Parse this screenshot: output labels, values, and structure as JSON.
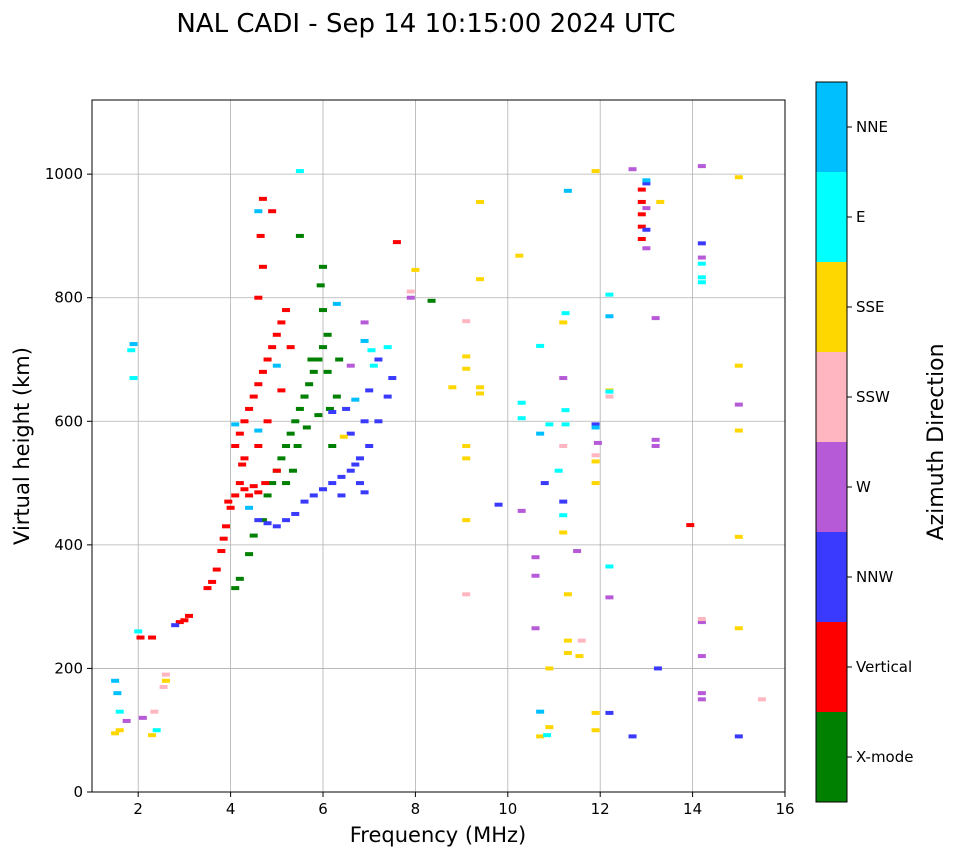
{
  "chart_data": {
    "type": "scatter",
    "title": "NAL CADI - Sep 14 10:15:00 2024 UTC",
    "xlabel": "Frequency (MHz)",
    "ylabel": "Virtual height (km)",
    "xlim": [
      1,
      16
    ],
    "ylim": [
      0,
      1120
    ],
    "xticks": [
      2,
      4,
      6,
      8,
      10,
      12,
      14,
      16
    ],
    "yticks": [
      0,
      200,
      400,
      600,
      800,
      1000
    ],
    "grid": true,
    "colorbar": {
      "title": "Azimuth Direction",
      "placement": "right",
      "categories": [
        {
          "name": "X-mode",
          "color": "#008000"
        },
        {
          "name": "Vertical",
          "color": "#ff0000"
        },
        {
          "name": "NNW",
          "color": "#3a3aff"
        },
        {
          "name": "W",
          "color": "#b65ad8"
        },
        {
          "name": "SSW",
          "color": "#ffb6c1"
        },
        {
          "name": "SSE",
          "color": "#ffd700"
        },
        {
          "name": "E",
          "color": "#00ffff"
        },
        {
          "name": "NNE",
          "color": "#00bfff"
        }
      ]
    },
    "series": [
      {
        "name": "X-mode",
        "points": [
          [
            4.1,
            330
          ],
          [
            4.2,
            345
          ],
          [
            4.4,
            385
          ],
          [
            4.5,
            415
          ],
          [
            4.7,
            440
          ],
          [
            4.8,
            480
          ],
          [
            4.9,
            500
          ],
          [
            5.0,
            520
          ],
          [
            5.1,
            540
          ],
          [
            5.2,
            560
          ],
          [
            5.3,
            580
          ],
          [
            5.4,
            600
          ],
          [
            5.5,
            620
          ],
          [
            5.6,
            640
          ],
          [
            5.7,
            660
          ],
          [
            5.8,
            680
          ],
          [
            5.9,
            700
          ],
          [
            6.0,
            720
          ],
          [
            6.1,
            740
          ],
          [
            6.0,
            780
          ],
          [
            5.95,
            820
          ],
          [
            6.0,
            850
          ],
          [
            5.5,
            900
          ],
          [
            5.6,
            640
          ],
          [
            5.75,
            700
          ],
          [
            5.35,
            520
          ],
          [
            5.2,
            500
          ],
          [
            5.45,
            560
          ],
          [
            5.65,
            590
          ],
          [
            5.9,
            610
          ],
          [
            6.15,
            620
          ],
          [
            6.3,
            640
          ],
          [
            6.2,
            560
          ],
          [
            6.35,
            700
          ],
          [
            6.1,
            680
          ],
          [
            8.35,
            795
          ]
        ]
      },
      {
        "name": "Vertical",
        "points": [
          [
            2.05,
            250
          ],
          [
            2.3,
            250
          ],
          [
            2.9,
            275
          ],
          [
            3.0,
            278
          ],
          [
            3.1,
            285
          ],
          [
            3.5,
            330
          ],
          [
            3.6,
            340
          ],
          [
            3.7,
            360
          ],
          [
            3.8,
            390
          ],
          [
            3.85,
            410
          ],
          [
            3.9,
            430
          ],
          [
            4.0,
            460
          ],
          [
            4.1,
            480
          ],
          [
            4.2,
            500
          ],
          [
            4.3,
            490
          ],
          [
            4.4,
            480
          ],
          [
            4.5,
            495
          ],
          [
            4.6,
            485
          ],
          [
            4.1,
            560
          ],
          [
            4.2,
            580
          ],
          [
            4.3,
            600
          ],
          [
            4.4,
            620
          ],
          [
            4.5,
            640
          ],
          [
            4.6,
            660
          ],
          [
            4.7,
            680
          ],
          [
            4.8,
            700
          ],
          [
            4.9,
            720
          ],
          [
            5.0,
            740
          ],
          [
            5.1,
            760
          ],
          [
            5.2,
            780
          ],
          [
            5.3,
            720
          ],
          [
            4.6,
            800
          ],
          [
            4.7,
            850
          ],
          [
            4.65,
            900
          ],
          [
            4.7,
            960
          ],
          [
            4.9,
            940
          ],
          [
            4.6,
            560
          ],
          [
            4.8,
            600
          ],
          [
            5.0,
            520
          ],
          [
            4.3,
            540
          ],
          [
            4.75,
            500
          ],
          [
            3.95,
            470
          ],
          [
            4.25,
            530
          ],
          [
            5.1,
            650
          ],
          [
            7.6,
            890
          ],
          [
            12.9,
            975
          ],
          [
            12.9,
            955
          ],
          [
            12.9,
            935
          ],
          [
            12.9,
            915
          ],
          [
            12.9,
            895
          ],
          [
            13.95,
            432
          ]
        ]
      },
      {
        "name": "NNW",
        "points": [
          [
            2.8,
            270
          ],
          [
            4.6,
            440
          ],
          [
            4.8,
            435
          ],
          [
            5.0,
            430
          ],
          [
            5.2,
            440
          ],
          [
            5.4,
            450
          ],
          [
            5.6,
            470
          ],
          [
            5.8,
            480
          ],
          [
            6.0,
            490
          ],
          [
            6.2,
            500
          ],
          [
            6.4,
            510
          ],
          [
            6.6,
            520
          ],
          [
            6.8,
            540
          ],
          [
            7.0,
            560
          ],
          [
            7.2,
            600
          ],
          [
            7.4,
            640
          ],
          [
            7.5,
            670
          ],
          [
            6.5,
            620
          ],
          [
            6.6,
            580
          ],
          [
            6.7,
            530
          ],
          [
            6.8,
            500
          ],
          [
            6.9,
            600
          ],
          [
            7.0,
            650
          ],
          [
            7.2,
            700
          ],
          [
            6.4,
            480
          ],
          [
            6.2,
            615
          ],
          [
            6.9,
            485
          ],
          [
            10.8,
            500
          ],
          [
            11.2,
            470
          ],
          [
            11.9,
            595
          ],
          [
            12.2,
            128
          ],
          [
            12.7,
            90
          ],
          [
            13.25,
            200
          ],
          [
            14.2,
            888
          ],
          [
            15.0,
            90
          ],
          [
            13.0,
            985
          ],
          [
            13.0,
            910
          ],
          [
            9.8,
            465
          ]
        ]
      },
      {
        "name": "W",
        "points": [
          [
            1.75,
            115
          ],
          [
            2.1,
            120
          ],
          [
            6.6,
            690
          ],
          [
            6.9,
            760
          ],
          [
            7.9,
            800
          ],
          [
            10.3,
            455
          ],
          [
            10.6,
            380
          ],
          [
            10.6,
            350
          ],
          [
            10.6,
            265
          ],
          [
            11.2,
            670
          ],
          [
            11.5,
            390
          ],
          [
            11.95,
            565
          ],
          [
            12.2,
            315
          ],
          [
            12.7,
            1008
          ],
          [
            13.2,
            570
          ],
          [
            13.2,
            560
          ],
          [
            13.2,
            767
          ],
          [
            14.2,
            1013
          ],
          [
            14.2,
            865
          ],
          [
            14.2,
            275
          ],
          [
            14.2,
            220
          ],
          [
            14.2,
            160
          ],
          [
            14.2,
            150
          ],
          [
            15.0,
            627
          ],
          [
            13.0,
            945
          ],
          [
            13.0,
            880
          ]
        ]
      },
      {
        "name": "SSW",
        "points": [
          [
            2.35,
            130
          ],
          [
            2.55,
            170
          ],
          [
            2.6,
            190
          ],
          [
            7.9,
            810
          ],
          [
            9.1,
            762
          ],
          [
            9.1,
            320
          ],
          [
            11.2,
            560
          ],
          [
            11.6,
            245
          ],
          [
            11.9,
            545
          ],
          [
            12.2,
            640
          ],
          [
            14.2,
            280
          ],
          [
            15.5,
            150
          ]
        ]
      },
      {
        "name": "SSE",
        "points": [
          [
            1.5,
            95
          ],
          [
            1.6,
            100
          ],
          [
            2.3,
            92
          ],
          [
            2.6,
            180
          ],
          [
            8.0,
            845
          ],
          [
            8.8,
            655
          ],
          [
            9.1,
            705
          ],
          [
            9.1,
            685
          ],
          [
            9.1,
            560
          ],
          [
            9.1,
            540
          ],
          [
            9.1,
            440
          ],
          [
            9.4,
            955
          ],
          [
            9.4,
            830
          ],
          [
            9.4,
            655
          ],
          [
            9.4,
            645
          ],
          [
            10.25,
            868
          ],
          [
            10.7,
            90
          ],
          [
            10.9,
            200
          ],
          [
            10.9,
            105
          ],
          [
            11.2,
            760
          ],
          [
            11.2,
            420
          ],
          [
            11.3,
            320
          ],
          [
            11.3,
            245
          ],
          [
            11.3,
            225
          ],
          [
            11.55,
            220
          ],
          [
            11.9,
            1005
          ],
          [
            11.9,
            535
          ],
          [
            11.9,
            500
          ],
          [
            11.9,
            128
          ],
          [
            11.9,
            100
          ],
          [
            12.2,
            650
          ],
          [
            15.0,
            995
          ],
          [
            15.0,
            690
          ],
          [
            15.0,
            585
          ],
          [
            15.0,
            413
          ],
          [
            15.0,
            265
          ],
          [
            13.3,
            955
          ],
          [
            6.45,
            575
          ]
        ]
      },
      {
        "name": "E",
        "points": [
          [
            1.6,
            130
          ],
          [
            1.85,
            715
          ],
          [
            1.9,
            670
          ],
          [
            2.0,
            260
          ],
          [
            2.4,
            100
          ],
          [
            7.05,
            715
          ],
          [
            7.1,
            690
          ],
          [
            7.4,
            720
          ],
          [
            10.3,
            630
          ],
          [
            10.3,
            605
          ],
          [
            10.7,
            722
          ],
          [
            10.9,
            595
          ],
          [
            11.1,
            520
          ],
          [
            11.2,
            448
          ],
          [
            11.25,
            775
          ],
          [
            11.25,
            618
          ],
          [
            11.25,
            595
          ],
          [
            12.2,
            805
          ],
          [
            12.2,
            365
          ],
          [
            12.2,
            648
          ],
          [
            14.2,
            833
          ],
          [
            14.2,
            825
          ],
          [
            14.2,
            855
          ],
          [
            5.5,
            1005
          ],
          [
            10.85,
            92
          ]
        ]
      },
      {
        "name": "NNE",
        "points": [
          [
            1.5,
            180
          ],
          [
            1.55,
            160
          ],
          [
            1.9,
            725
          ],
          [
            4.1,
            595
          ],
          [
            4.4,
            460
          ],
          [
            4.6,
            585
          ],
          [
            4.6,
            940
          ],
          [
            5.0,
            690
          ],
          [
            6.7,
            635
          ],
          [
            6.9,
            730
          ],
          [
            6.3,
            790
          ],
          [
            10.7,
            580
          ],
          [
            10.7,
            130
          ],
          [
            11.3,
            973
          ],
          [
            11.9,
            590
          ],
          [
            12.2,
            770
          ],
          [
            13.0,
            990
          ]
        ]
      }
    ]
  }
}
